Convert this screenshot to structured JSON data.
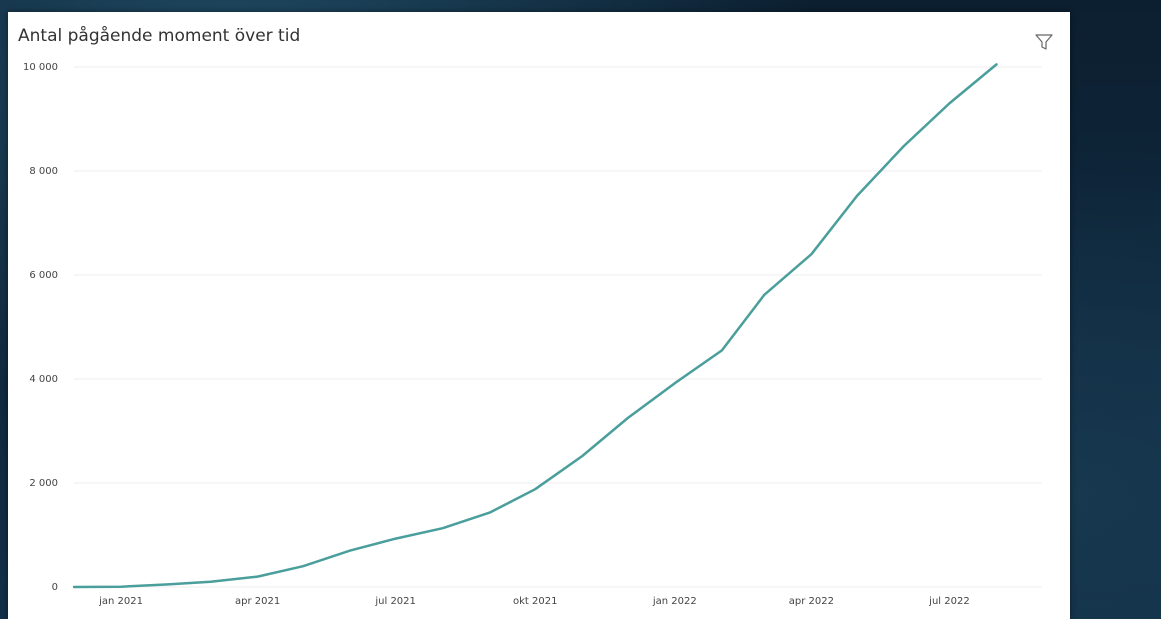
{
  "colors": {
    "line": "#4a9e9b",
    "grid": "#ececec",
    "text": "#333333",
    "axis_text": "#444444",
    "card_bg": "#ffffff"
  },
  "header": {
    "title": "Antal pågående moment över tid",
    "filter_icon": "filter-icon"
  },
  "chart_data": {
    "type": "line",
    "title": "Antal pågående moment över tid",
    "xlabel": "",
    "ylabel": "",
    "grid": true,
    "legend": "none",
    "x_ticks": [
      "jan 2021",
      "apr 2021",
      "jul 2021",
      "okt 2021",
      "jan 2022",
      "apr 2022",
      "jul 2022"
    ],
    "y_ticks": [
      "0",
      "2 000",
      "4 000",
      "6 000",
      "8 000",
      "10 000"
    ],
    "ylim": [
      0,
      10000
    ],
    "xlim": [
      "2020-12-01",
      "2022-08-31"
    ],
    "series": [
      {
        "x": [
          "2020-12-01",
          "2021-01-01",
          "2021-02-01",
          "2021-03-01",
          "2021-04-01",
          "2021-05-01",
          "2021-06-01",
          "2021-07-01",
          "2021-08-01",
          "2021-09-01",
          "2021-10-01",
          "2021-11-01",
          "2021-12-01",
          "2022-01-01",
          "2022-02-01",
          "2022-03-01",
          "2022-04-01",
          "2022-05-01",
          "2022-06-01",
          "2022-07-01",
          "2022-08-01"
        ],
        "values": [
          0,
          5,
          50,
          100,
          200,
          400,
          700,
          930,
          1130,
          1430,
          1880,
          2520,
          3250,
          3920,
          4550,
          5620,
          6400,
          7520,
          8480,
          9300,
          10050
        ]
      }
    ]
  }
}
